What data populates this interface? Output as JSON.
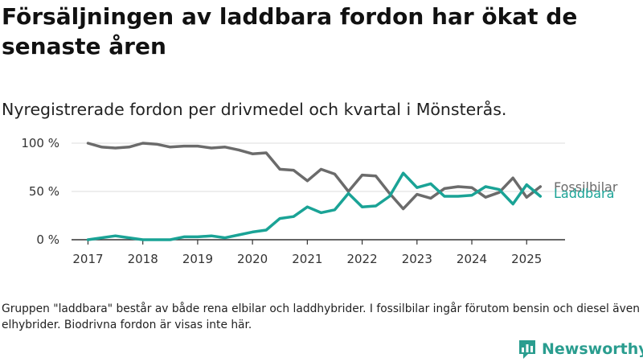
{
  "header": {
    "title": "Försäljningen av laddbara fordon har ökat de senaste åren",
    "subtitle": "Nyregistrerade fordon per drivmedel och kvartal i Mönsterås."
  },
  "footnote": "Gruppen \"laddbara\" består av både rena elbilar och laddhybrider. I fossilbilar ingår förutom bensin och diesel även elhybrider. Biodrivna fordon är visas inte här.",
  "logo": {
    "text": "Newsworthy",
    "icon": "bar-chart-icon"
  },
  "chart_data": {
    "type": "line",
    "title": "",
    "xlabel": "",
    "ylabel": "",
    "xlim": [
      2016.7,
      2025.7
    ],
    "ylim": [
      0,
      100
    ],
    "grid": true,
    "x_ticks": [
      {
        "value": 2017,
        "label": "2017"
      },
      {
        "value": 2018,
        "label": "2018"
      },
      {
        "value": 2019,
        "label": "2019"
      },
      {
        "value": 2020,
        "label": "2020"
      },
      {
        "value": 2021,
        "label": "2021"
      },
      {
        "value": 2022,
        "label": "2022"
      },
      {
        "value": 2023,
        "label": "2023"
      },
      {
        "value": 2024,
        "label": "2024"
      },
      {
        "value": 2025,
        "label": "2025"
      }
    ],
    "y_ticks": [
      {
        "value": 0,
        "label": "0 %"
      },
      {
        "value": 50,
        "label": "50 %"
      },
      {
        "value": 100,
        "label": "100 %"
      }
    ],
    "x": [
      "2017-Q1",
      "2017-Q2",
      "2017-Q3",
      "2017-Q4",
      "2018-Q1",
      "2018-Q2",
      "2018-Q3",
      "2018-Q4",
      "2019-Q1",
      "2019-Q2",
      "2019-Q3",
      "2019-Q4",
      "2020-Q1",
      "2020-Q2",
      "2020-Q3",
      "2020-Q4",
      "2021-Q1",
      "2021-Q2",
      "2021-Q3",
      "2021-Q4",
      "2022-Q1",
      "2022-Q2",
      "2022-Q3",
      "2022-Q4",
      "2023-Q1",
      "2023-Q2",
      "2023-Q3",
      "2023-Q4",
      "2024-Q1",
      "2024-Q2",
      "2024-Q3",
      "2024-Q4",
      "2025-Q1",
      "2025-Q2"
    ],
    "series": [
      {
        "name": "Fossilbilar",
        "color": "#6b6b6b",
        "values": [
          100,
          96,
          95,
          96,
          100,
          99,
          96,
          97,
          97,
          95,
          96,
          93,
          89,
          90,
          73,
          72,
          61,
          73,
          68,
          50,
          67,
          66,
          48,
          32,
          47,
          43,
          53,
          55,
          54,
          44,
          49,
          64,
          44,
          55
        ]
      },
      {
        "name": "Laddbara",
        "color": "#1aa396",
        "values": [
          0,
          2,
          4,
          2,
          0,
          0,
          0,
          3,
          3,
          4,
          2,
          5,
          8,
          10,
          22,
          24,
          34,
          28,
          31,
          48,
          34,
          35,
          45,
          69,
          54,
          58,
          45,
          45,
          46,
          55,
          52,
          37,
          57,
          45
        ]
      }
    ]
  }
}
